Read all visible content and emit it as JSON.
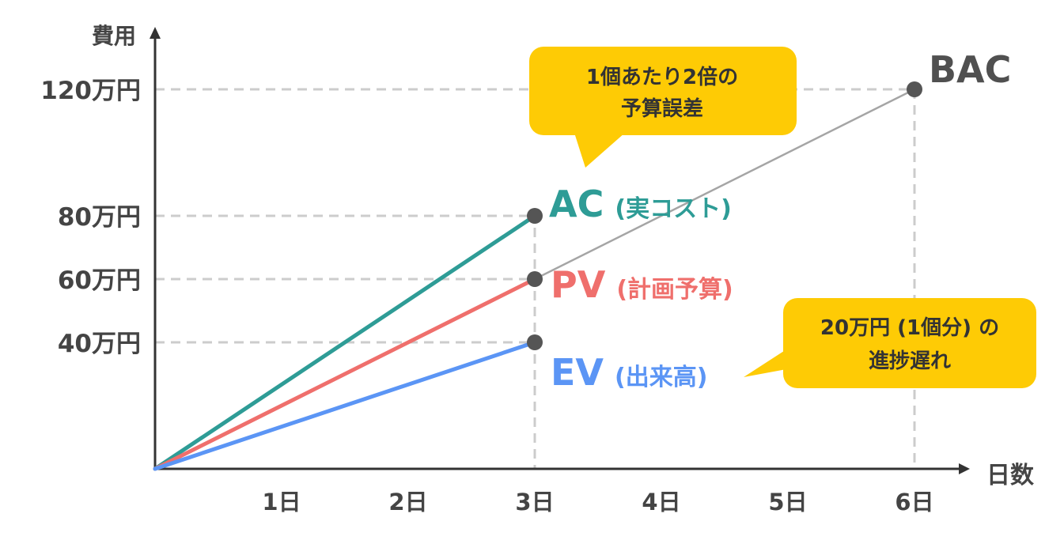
{
  "chart_data": {
    "type": "line",
    "x_axis_label": "日数",
    "y_axis_label": "費用",
    "x_ticks": [
      {
        "value": 1,
        "label": "1日"
      },
      {
        "value": 2,
        "label": "2日"
      },
      {
        "value": 3,
        "label": "3日"
      },
      {
        "value": 4,
        "label": "4日"
      },
      {
        "value": 5,
        "label": "5日"
      },
      {
        "value": 6,
        "label": "6日"
      }
    ],
    "y_ticks": [
      {
        "value": 40,
        "label": "40万円"
      },
      {
        "value": 60,
        "label": "60万円"
      },
      {
        "value": 80,
        "label": "80万円"
      },
      {
        "value": 120,
        "label": "120万円"
      }
    ],
    "xlim": [
      0,
      6.9
    ],
    "ylim": [
      0,
      130
    ],
    "series": [
      {
        "key": "ac",
        "name": "AC",
        "sublabel": "(実コスト)",
        "color": "#2e9c96",
        "x": [
          0,
          3
        ],
        "y": [
          0,
          80
        ]
      },
      {
        "key": "pv",
        "name": "PV",
        "sublabel": "(計画予算)",
        "color": "#ef6f6c",
        "x": [
          0,
          3
        ],
        "y": [
          0,
          60
        ]
      },
      {
        "key": "ev",
        "name": "EV",
        "sublabel": "(出来高)",
        "color": "#5b95f5",
        "x": [
          0,
          3
        ],
        "y": [
          0,
          40
        ]
      }
    ],
    "baseline": {
      "name": "BAC",
      "color": "#a5a5a5",
      "x": [
        0,
        6
      ],
      "y": [
        0,
        120
      ]
    },
    "points": [
      {
        "x": 3,
        "y": 80
      },
      {
        "x": 3,
        "y": 60
      },
      {
        "x": 3,
        "y": 40
      },
      {
        "x": 6,
        "y": 120
      }
    ],
    "guides": {
      "horizontal": [
        {
          "y": 120,
          "x_end": 6
        },
        {
          "y": 80,
          "x_end": 3
        },
        {
          "y": 60,
          "x_end": 3
        },
        {
          "y": 40,
          "x_end": 3
        }
      ],
      "vertical": [
        {
          "x": 3
        },
        {
          "x": 6,
          "y_end": 120
        }
      ]
    },
    "annotations": [
      {
        "key": "error",
        "lines": [
          "1個あたり2倍の",
          "予算誤差"
        ],
        "color": "#fecb05"
      },
      {
        "key": "delay",
        "lines": [
          "20万円 (1個分) の",
          "進捗遅れ"
        ],
        "color": "#fecb05"
      }
    ],
    "colors": {
      "axis": "#333333",
      "guide": "#cccccc",
      "point": "#555555",
      "text": "#444444"
    }
  }
}
